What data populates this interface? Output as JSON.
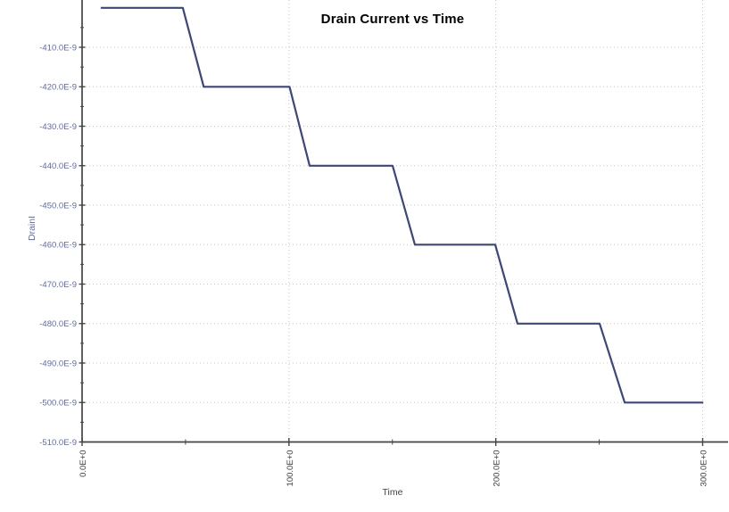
{
  "window": {
    "background": "#ffffff"
  },
  "chart_data": {
    "type": "line",
    "title": "Drain Current vs Time",
    "xlabel": "Time",
    "ylabel": "DrainI",
    "x_unit_format": "engineering notation (E+0)",
    "y_unit_format": "engineering notation (E-9, amps)",
    "xlim": [
      0,
      300
    ],
    "ylim_e9": [
      -510,
      -399
    ],
    "grid": "dotted",
    "legend": "none",
    "x_major_ticks": [
      0,
      100,
      200,
      300
    ],
    "x_tick_labels": [
      "0.0E+0",
      "100.0E+0",
      "200.0E+0",
      "300.0E+0"
    ],
    "x_minor_ticks": [
      50,
      150,
      250
    ],
    "y_major_ticks_e9": [
      -410,
      -420,
      -430,
      -440,
      -450,
      -460,
      -470,
      -480,
      -490,
      -500,
      -510
    ],
    "y_tick_labels": [
      "-410.0E-9",
      "-420.0E-9",
      "-430.0E-9",
      "-440.0E-9",
      "-450.0E-9",
      "-460.0E-9",
      "-470.0E-9",
      "-480.0E-9",
      "-490.0E-9",
      "-500.0E-9",
      "-510.0E-9"
    ],
    "y_minor_ticks_e9": [
      -405,
      -415,
      -425,
      -435,
      -445,
      -455,
      -465,
      -475,
      -485,
      -495,
      -505
    ],
    "series": [
      {
        "name": "DrainI",
        "color": "#3b477e",
        "shape": "descending staircase, 6 flat steps of ~40 time units separated by ~10-unit ramps",
        "step_levels_e9": [
          -400,
          -420,
          -440,
          -460,
          -480,
          -500
        ],
        "points_time_vs_current_e9": [
          [
            9,
            -400
          ],
          [
            48.7,
            -400
          ],
          [
            58.8,
            -420
          ],
          [
            100.3,
            -420
          ],
          [
            110,
            -440
          ],
          [
            150.1,
            -440
          ],
          [
            160.9,
            -460
          ],
          [
            199.7,
            -460
          ],
          [
            210.5,
            -480
          ],
          [
            250.2,
            -480
          ],
          [
            262.3,
            -500
          ],
          [
            300.3,
            -500
          ]
        ]
      }
    ]
  },
  "colors": {
    "line": "#3b477e",
    "grid_dots": "#c4c4c4",
    "axis": "#454545",
    "y_tick_text": "#5c6ab0",
    "x_tick_text": "#3f3f3f",
    "title_text": "#000000",
    "background": "#ffffff"
  }
}
